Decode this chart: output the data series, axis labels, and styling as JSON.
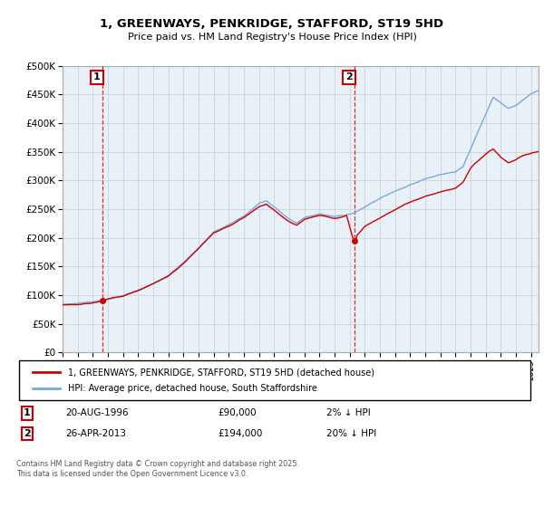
{
  "title": "1, GREENWAYS, PENKRIDGE, STAFFORD, ST19 5HD",
  "subtitle": "Price paid vs. HM Land Registry's House Price Index (HPI)",
  "legend_line1": "1, GREENWAYS, PENKRIDGE, STAFFORD, ST19 5HD (detached house)",
  "legend_line2": "HPI: Average price, detached house, South Staffordshire",
  "annotation1_label": "1",
  "annotation1_date": "20-AUG-1996",
  "annotation1_price": "£90,000",
  "annotation1_hpi": "2% ↓ HPI",
  "annotation2_label": "2",
  "annotation2_date": "26-APR-2013",
  "annotation2_price": "£194,000",
  "annotation2_hpi": "20% ↓ HPI",
  "footer": "Contains HM Land Registry data © Crown copyright and database right 2025.\nThis data is licensed under the Open Government Licence v3.0.",
  "ylim": [
    0,
    500000
  ],
  "yticks": [
    0,
    50000,
    100000,
    150000,
    200000,
    250000,
    300000,
    350000,
    400000,
    450000,
    500000
  ],
  "price_color": "#cc0000",
  "hpi_color": "#7aaadd",
  "annotation_color": "#cc0000",
  "grid_color": "#cccccc",
  "chart_bg_color": "#e8f0f8",
  "background_color": "#ffffff",
  "sale1_year": 1996.64,
  "sale1_price": 90000,
  "sale2_year": 2013.32,
  "sale2_price": 194000,
  "xmin": 1994,
  "xmax": 2025.5
}
